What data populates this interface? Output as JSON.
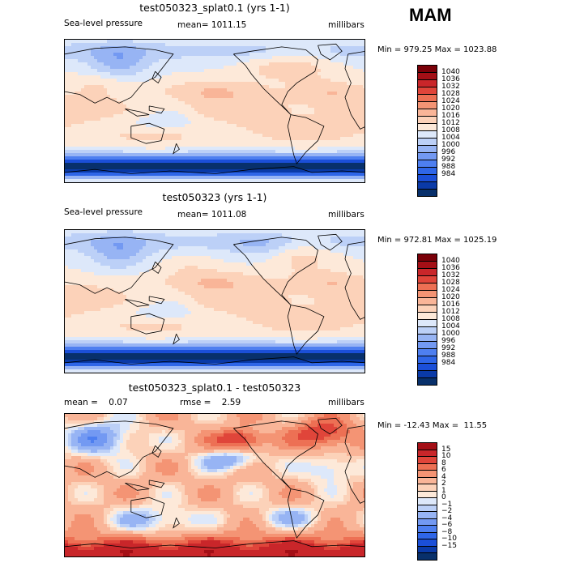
{
  "season": "MAM",
  "colors": {
    "pressure_scale": [
      "#08306b",
      "#0a3aa8",
      "#1b4fd8",
      "#2f66e8",
      "#4e7ff0",
      "#7399f2",
      "#97b4f4",
      "#bcd0f7",
      "#dde8fa",
      "#fde9d9",
      "#fcd2b9",
      "#f9b598",
      "#f49474",
      "#ed7054",
      "#e0453a",
      "#c9262a",
      "#a40f16",
      "#7a0008"
    ],
    "diff_scale": [
      "#08306b",
      "#0a3aa8",
      "#1b4fd8",
      "#2f66e8",
      "#4e7ff0",
      "#7399f2",
      "#97b4f4",
      "#bcd0f7",
      "#dde8fa",
      "#fde9d9",
      "#fcd2b9",
      "#f9b598",
      "#f49474",
      "#ed7054",
      "#e0453a",
      "#c9262a",
      "#a40f16"
    ]
  },
  "panels": [
    {
      "title": "test050323_splat0.1 (yrs 1-1)",
      "left_label": "Sea-level pressure",
      "mid_label": "mean= 1011.15",
      "right_label": "millibars",
      "minmax": "Min = 979.25 Max = 1023.88"
    },
    {
      "title": "test050323 (yrs 1-1)",
      "left_label": "Sea-level pressure",
      "mid_label": "mean= 1011.08",
      "right_label": "millibars",
      "minmax": "Min = 972.81 Max = 1025.19"
    },
    {
      "title": "test050323_splat0.1 - test050323",
      "left_label": "mean =    0.07",
      "mid_label": "rmse =    2.59",
      "right_label": "millibars",
      "minmax": "Min = -12.43 Max =  11.55"
    }
  ],
  "chart_data": [
    {
      "type": "heatmap",
      "title": "test050323_splat0.1 (yrs 1-1)",
      "variable": "Sea-level pressure",
      "units": "millibars",
      "mean": 1011.15,
      "min": 979.25,
      "max": 1023.88,
      "colorbar_levels": [
        1040,
        1036,
        1032,
        1028,
        1024,
        1020,
        1016,
        1012,
        1008,
        1004,
        1000,
        996,
        992,
        988,
        984
      ],
      "colorbar_labels": [
        "1040",
        "1036",
        "1032",
        "1028",
        "1024",
        "1020",
        "1016",
        "1012",
        "1008",
        "1004",
        "1000",
        "996",
        "992",
        "988",
        "984"
      ]
    },
    {
      "type": "heatmap",
      "title": "test050323 (yrs 1-1)",
      "variable": "Sea-level pressure",
      "units": "millibars",
      "mean": 1011.08,
      "min": 972.81,
      "max": 1025.19,
      "colorbar_levels": [
        1040,
        1036,
        1032,
        1028,
        1024,
        1020,
        1016,
        1012,
        1008,
        1004,
        1000,
        996,
        992,
        988,
        984
      ],
      "colorbar_labels": [
        "1040",
        "1036",
        "1032",
        "1028",
        "1024",
        "1020",
        "1016",
        "1012",
        "1008",
        "1004",
        "1000",
        "996",
        "992",
        "988",
        "984"
      ]
    },
    {
      "type": "heatmap",
      "title": "test050323_splat0.1 - test050323",
      "units": "millibars",
      "mean": 0.07,
      "rmse": 2.59,
      "min": -12.43,
      "max": 11.55,
      "colorbar_levels": [
        15,
        10,
        8,
        6,
        4,
        2,
        1,
        0,
        -1,
        -2,
        -4,
        -6,
        -8,
        -10,
        -15
      ],
      "colorbar_labels": [
        "15",
        "10",
        "8",
        "6",
        "4",
        "2",
        "1",
        "0",
        "−1",
        "−2",
        "−4",
        "−6",
        "−8",
        "−10",
        "−15"
      ]
    }
  ]
}
